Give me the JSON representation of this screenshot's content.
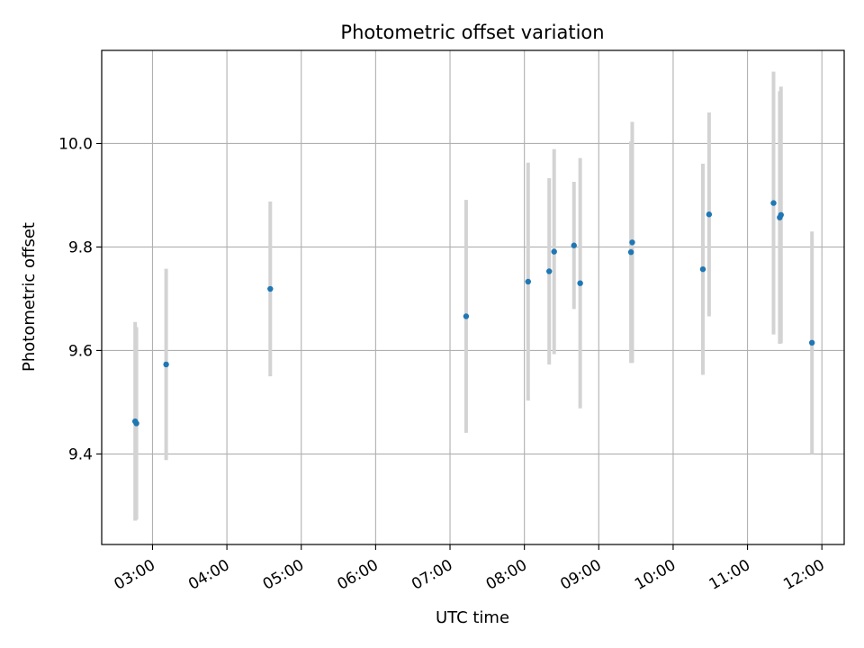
{
  "chart_data": {
    "type": "scatter",
    "title": "Photometric offset variation",
    "xlabel": "UTC time",
    "ylabel": "Photometric offset",
    "x_unit": "UTC time of day (HH:MM)",
    "xlim": [
      "02:19",
      "12:18"
    ],
    "ylim": [
      9.225,
      10.18
    ],
    "grid": true,
    "x_tick_labels": [
      "03:00",
      "04:00",
      "05:00",
      "06:00",
      "07:00",
      "08:00",
      "09:00",
      "10:00",
      "11:00",
      "12:00"
    ],
    "x_ticks": [
      "03:00",
      "04:00",
      "05:00",
      "06:00",
      "07:00",
      "08:00",
      "09:00",
      "10:00",
      "11:00",
      "12:00"
    ],
    "y_ticks": [
      9.4,
      9.6,
      9.8,
      10.0
    ],
    "y_tick_labels": [
      "9.4",
      "9.6",
      "9.8",
      "10.0"
    ],
    "series": [
      {
        "marker_color": "#1f77b4",
        "errorbar_color": "#d3d3d3",
        "points": [
          {
            "x": "02:46",
            "y": 9.463,
            "err_low": 9.271,
            "err_high": 9.655
          },
          {
            "x": "02:47",
            "y": 9.459,
            "err_low": 9.273,
            "err_high": 9.645
          },
          {
            "x": "03:11",
            "y": 9.573,
            "err_low": 9.388,
            "err_high": 9.758
          },
          {
            "x": "04:35",
            "y": 9.719,
            "err_low": 9.55,
            "err_high": 9.888
          },
          {
            "x": "07:13",
            "y": 9.666,
            "err_low": 9.441,
            "err_high": 9.891
          },
          {
            "x": "08:03",
            "y": 9.733,
            "err_low": 9.503,
            "err_high": 9.963
          },
          {
            "x": "08:20",
            "y": 9.753,
            "err_low": 9.573,
            "err_high": 9.933
          },
          {
            "x": "08:24",
            "y": 9.791,
            "err_low": 9.593,
            "err_high": 9.989
          },
          {
            "x": "08:40",
            "y": 9.803,
            "err_low": 9.68,
            "err_high": 9.926
          },
          {
            "x": "08:45",
            "y": 9.73,
            "err_low": 9.488,
            "err_high": 9.972
          },
          {
            "x": "09:26",
            "y": 9.79,
            "err_low": 9.576,
            "err_high": 10.004
          },
          {
            "x": "09:27",
            "y": 9.809,
            "err_low": 9.576,
            "err_high": 10.042
          },
          {
            "x": "10:24",
            "y": 9.757,
            "err_low": 9.553,
            "err_high": 9.961
          },
          {
            "x": "10:29",
            "y": 9.863,
            "err_low": 9.666,
            "err_high": 10.06
          },
          {
            "x": "11:21",
            "y": 9.885,
            "err_low": 9.631,
            "err_high": 10.139
          },
          {
            "x": "11:26",
            "y": 9.857,
            "err_low": 9.613,
            "err_high": 10.101
          },
          {
            "x": "11:27",
            "y": 9.862,
            "err_low": 9.614,
            "err_high": 10.11
          },
          {
            "x": "11:52",
            "y": 9.615,
            "err_low": 9.4,
            "err_high": 9.83
          }
        ]
      }
    ]
  }
}
